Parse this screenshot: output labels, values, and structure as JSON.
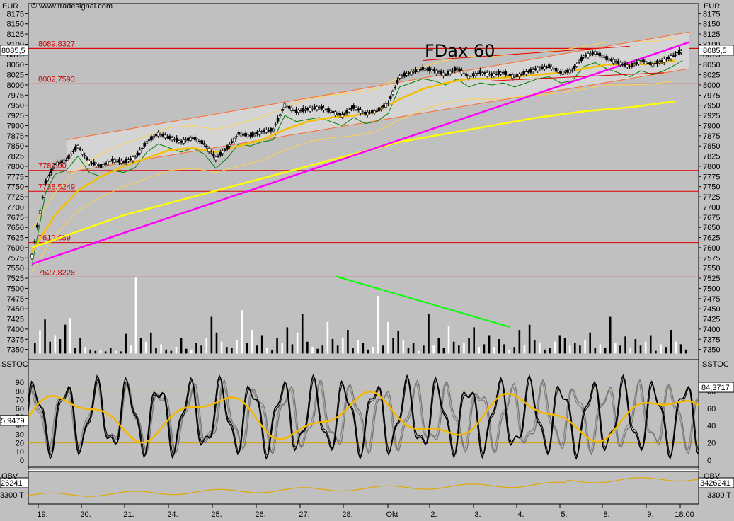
{
  "header": {
    "copyright": "© www.tradesignal.com",
    "currency_left": "EUR",
    "currency_right": "EUR"
  },
  "chart_data": {
    "type": "candlestick",
    "title": "FDax 60",
    "current_price_label": "8085,5",
    "ylim": [
      7325,
      8200
    ],
    "price_ticks": [
      8175,
      8150,
      8125,
      8100,
      8075,
      8050,
      8025,
      8000,
      7975,
      7950,
      7925,
      7900,
      7875,
      7850,
      7825,
      7800,
      7775,
      7750,
      7725,
      7700,
      7675,
      7650,
      7625,
      7600,
      7575,
      7550,
      7525,
      7500,
      7475,
      7450,
      7425,
      7400,
      7375,
      7350
    ],
    "x_labels": [
      "19.",
      "20.",
      "21.",
      "24.",
      "25.",
      "26.",
      "27.",
      "28.",
      "Okt",
      "2.",
      "3.",
      "4.",
      "5.",
      "8.",
      "9.",
      "18:00"
    ],
    "levels": [
      {
        "label": "8089,8327",
        "value": 8089.8
      },
      {
        "label": "8002,7593",
        "value": 8002.8
      },
      {
        "label": "7789,9043",
        "value": 7790.0
      },
      {
        "label": "7738,5249",
        "value": 7738.5
      },
      {
        "label": "7612,689",
        "value": 7612.7
      },
      {
        "label": "7527,8228",
        "value": 7527.8
      }
    ],
    "close_path": [
      [
        0,
        7580
      ],
      [
        0.6,
        7760
      ],
      [
        1,
        7805
      ],
      [
        1.5,
        7815
      ],
      [
        2,
        7850
      ],
      [
        2.5,
        7810
      ],
      [
        3,
        7800
      ],
      [
        3.5,
        7815
      ],
      [
        4,
        7810
      ],
      [
        4.5,
        7822
      ],
      [
        5,
        7860
      ],
      [
        5.5,
        7880
      ],
      [
        6,
        7870
      ],
      [
        6.5,
        7860
      ],
      [
        7,
        7870
      ],
      [
        7.5,
        7855
      ],
      [
        8,
        7820
      ],
      [
        8.5,
        7845
      ],
      [
        9,
        7880
      ],
      [
        9.5,
        7875
      ],
      [
        10,
        7885
      ],
      [
        10.5,
        7890
      ],
      [
        11,
        7950
      ],
      [
        11.5,
        7935
      ],
      [
        12,
        7940
      ],
      [
        12.5,
        7945
      ],
      [
        13,
        7935
      ],
      [
        13.5,
        7925
      ],
      [
        14,
        7945
      ],
      [
        14.5,
        7930
      ],
      [
        15,
        7935
      ],
      [
        15.5,
        7955
      ],
      [
        16,
        8020
      ],
      [
        16.5,
        8030
      ],
      [
        17,
        8040
      ],
      [
        17.5,
        8035
      ],
      [
        18,
        8025
      ],
      [
        18.5,
        8040
      ],
      [
        19,
        8020
      ],
      [
        19.5,
        8030
      ],
      [
        20,
        8025
      ],
      [
        20.5,
        8030
      ],
      [
        21,
        8020
      ],
      [
        21.5,
        8030
      ],
      [
        22,
        8040
      ],
      [
        22.5,
        8045
      ],
      [
        23,
        8030
      ],
      [
        23.5,
        8035
      ],
      [
        24,
        8070
      ],
      [
        24.5,
        8080
      ],
      [
        25,
        8065
      ],
      [
        25.5,
        8055
      ],
      [
        26,
        8045
      ],
      [
        26.5,
        8060
      ],
      [
        27,
        8050
      ],
      [
        27.5,
        8060
      ],
      [
        28,
        8075
      ],
      [
        28.3,
        8085
      ]
    ],
    "ma_fast": [
      [
        0,
        7590
      ],
      [
        1,
        7680
      ],
      [
        2,
        7740
      ],
      [
        3,
        7775
      ],
      [
        4,
        7800
      ],
      [
        5,
        7820
      ],
      [
        6,
        7840
      ],
      [
        7,
        7845
      ],
      [
        8,
        7835
      ],
      [
        9,
        7850
      ],
      [
        10,
        7865
      ],
      [
        11,
        7890
      ],
      [
        12,
        7910
      ],
      [
        13,
        7920
      ],
      [
        14,
        7925
      ],
      [
        15,
        7935
      ],
      [
        16,
        7965
      ],
      [
        17,
        7990
      ],
      [
        18,
        8005
      ],
      [
        19,
        8015
      ],
      [
        20,
        8015
      ],
      [
        21,
        8020
      ],
      [
        22,
        8025
      ],
      [
        23,
        8030
      ],
      [
        24,
        8040
      ],
      [
        25,
        8050
      ],
      [
        26,
        8050
      ],
      [
        27,
        8052
      ],
      [
        28,
        8060
      ]
    ],
    "ma_slow": [
      [
        0,
        7600
      ],
      [
        2,
        7640
      ],
      [
        4,
        7680
      ],
      [
        6,
        7710
      ],
      [
        8,
        7740
      ],
      [
        10,
        7770
      ],
      [
        12,
        7800
      ],
      [
        14,
        7830
      ],
      [
        16,
        7860
      ],
      [
        18,
        7880
      ],
      [
        20,
        7900
      ],
      [
        22,
        7920
      ],
      [
        24,
        7935
      ],
      [
        26,
        7945
      ],
      [
        28,
        7960
      ]
    ],
    "trend_lines": {
      "magenta_support": {
        "from": [
          0,
          7560
        ],
        "to": [
          28.6,
          8105
        ]
      },
      "channel_upper": {
        "from": [
          1.5,
          7865
        ],
        "to": [
          28.6,
          8130
        ]
      },
      "channel_lower": {
        "from": [
          1.5,
          7785
        ],
        "to": [
          28.6,
          8040
        ]
      },
      "short_upper": {
        "from": [
          17,
          8060
        ],
        "to": [
          26,
          8095
        ]
      },
      "short_lower": {
        "from": [
          20,
          8010
        ],
        "to": [
          27.5,
          8030
        ]
      },
      "volume_trend": {
        "from": [
          13.2,
          7530
        ],
        "to": [
          20.8,
          7405
        ]
      }
    },
    "volume_bars": [
      40,
      90,
      130,
      45,
      70,
      55,
      110,
      135,
      20,
      60,
      25,
      15,
      10,
      12,
      8,
      20,
      10,
      8,
      75,
      30,
      290,
      60,
      45,
      80,
      20,
      35,
      15,
      10,
      25,
      60,
      18,
      12,
      40,
      30,
      60,
      140,
      80,
      45,
      25,
      20,
      50,
      165,
      40,
      90,
      30,
      70,
      20,
      12,
      60,
      40,
      100,
      35,
      80,
      150,
      45,
      25,
      18,
      30,
      120,
      55,
      30,
      60,
      90,
      20,
      50,
      40,
      15,
      25,
      220,
      30,
      120,
      60,
      85,
      50,
      20,
      40,
      10,
      30,
      150,
      30,
      60,
      20,
      105,
      45,
      30,
      40,
      60,
      100,
      25,
      35,
      70,
      25,
      55,
      35,
      15,
      25,
      90,
      30,
      110,
      50,
      40,
      15,
      20,
      45,
      70,
      60,
      30,
      40,
      30,
      50,
      80,
      20,
      35,
      20,
      140,
      40,
      30,
      65,
      20,
      55,
      30,
      45,
      70,
      10,
      35,
      25,
      90,
      45,
      35,
      15
    ],
    "sstoc": {
      "label": "SSTOC",
      "value_right": "84,3717",
      "value_left": "5,9479",
      "ticks": [
        90,
        80,
        70,
        60,
        50,
        40,
        30,
        20,
        10,
        0
      ],
      "ticks_right": [
        80,
        60,
        40,
        20,
        0
      ],
      "upper_level": 80,
      "lower_level": 20
    },
    "obv": {
      "label": "OBV",
      "value_right": "3426241",
      "value_left": "26241",
      "tick_label": "3300 T",
      "tick_label_left": "3300 T"
    }
  }
}
